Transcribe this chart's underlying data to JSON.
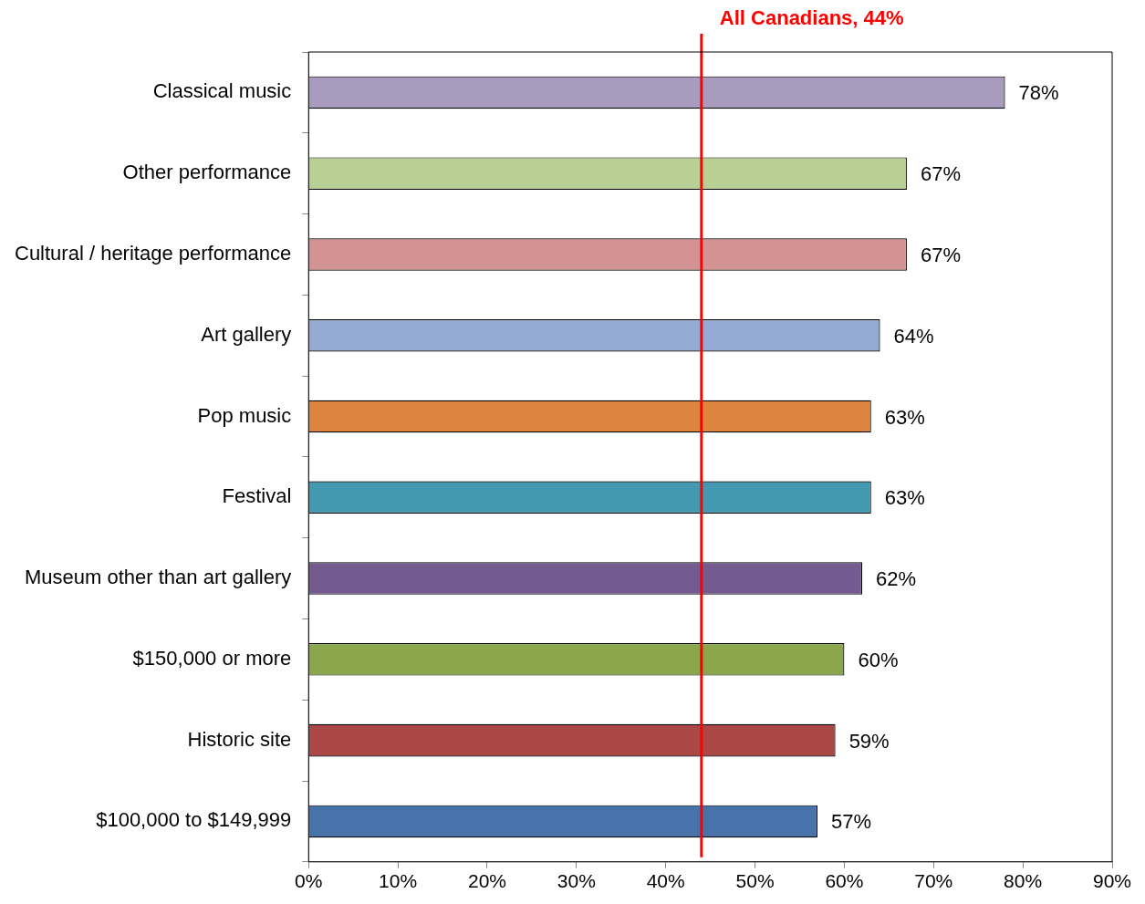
{
  "chart_data": {
    "type": "bar",
    "orientation": "horizontal",
    "categories": [
      "Classical music",
      "Other performance",
      "Cultural / heritage performance",
      "Art gallery",
      "Pop music",
      "Festival",
      "Museum other than art gallery",
      "$150,000 or more",
      "Historic site",
      "$100,000 to $149,999"
    ],
    "values": [
      78,
      67,
      67,
      64,
      63,
      63,
      62,
      60,
      59,
      57
    ],
    "colors": [
      "#a99bbd",
      "#b9d095",
      "#d39392",
      "#95abd3",
      "#dd8440",
      "#4399b0",
      "#735a8f",
      "#8aa74e",
      "#ab4745",
      "#4773aa"
    ],
    "value_labels": [
      "78%",
      "67%",
      "67%",
      "64%",
      "63%",
      "63%",
      "62%",
      "60%",
      "59%",
      "57%"
    ],
    "xlim": [
      0,
      90
    ],
    "xticks": [
      {
        "value": 0,
        "label": "0%"
      },
      {
        "value": 10,
        "label": "10%"
      },
      {
        "value": 20,
        "label": "20%"
      },
      {
        "value": 30,
        "label": "30%"
      },
      {
        "value": 40,
        "label": "40%"
      },
      {
        "value": 50,
        "label": "50%"
      },
      {
        "value": 60,
        "label": "60%"
      },
      {
        "value": 70,
        "label": "70%"
      },
      {
        "value": 80,
        "label": "80%"
      },
      {
        "value": 90,
        "label": "90%"
      }
    ],
    "ref_lines": [
      {
        "axis": "x",
        "value": 44,
        "label": "All Canadians, 44%",
        "color": "#ff0000"
      }
    ],
    "legend": false
  }
}
